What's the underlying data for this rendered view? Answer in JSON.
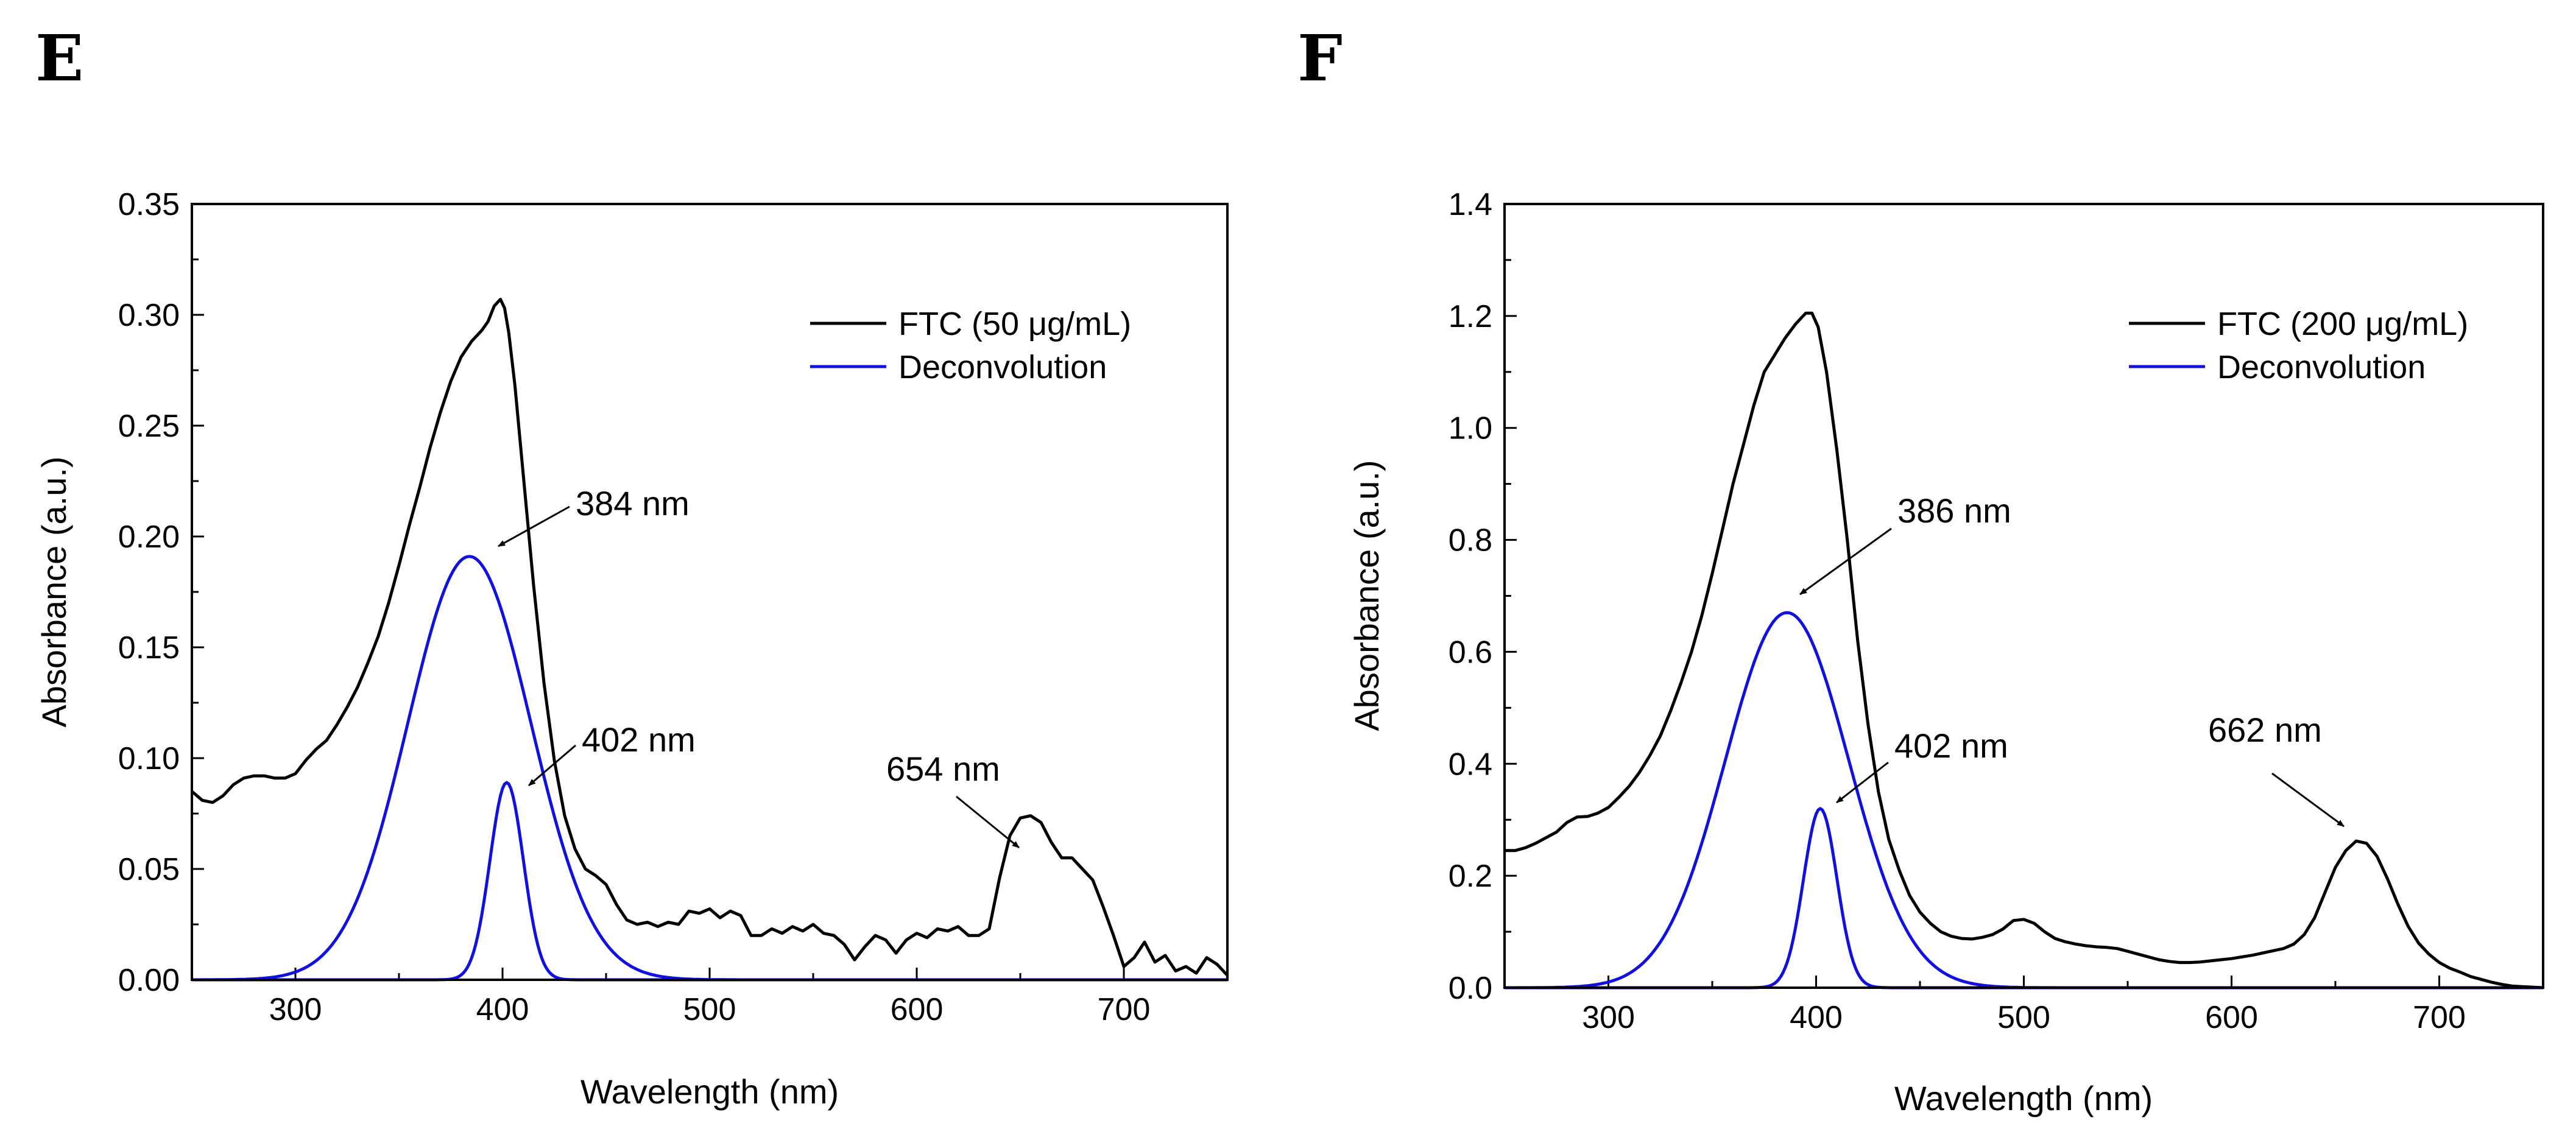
{
  "chart_data": [
    {
      "type": "line",
      "panel_label": "E",
      "xlabel": "Wavelength (nm)",
      "ylabel": "Absorbance (a.u.)",
      "xlim": [
        250,
        750
      ],
      "ylim": [
        0,
        0.35
      ],
      "x_ticks": [
        300,
        400,
        500,
        600,
        700
      ],
      "y_ticks": [
        0.0,
        0.05,
        0.1,
        0.15,
        0.2,
        0.25,
        0.3,
        0.35
      ],
      "y_tick_labels": [
        "0.00",
        "0.05",
        "0.10",
        "0.15",
        "0.20",
        "0.25",
        "0.30",
        "0.35"
      ],
      "legend": [
        "FTC (50 μg/mL)",
        "Deconvolution"
      ],
      "legend_position": "top-right",
      "series": [
        {
          "name": "FTC (50 μg/mL)",
          "color": "#000000",
          "x": [
            250,
            255,
            260,
            265,
            270,
            275,
            280,
            285,
            290,
            295,
            300,
            305,
            310,
            315,
            320,
            325,
            330,
            335,
            340,
            345,
            350,
            355,
            360,
            365,
            370,
            375,
            380,
            385,
            390,
            393,
            396,
            399,
            401,
            403,
            406,
            410,
            415,
            420,
            425,
            430,
            435,
            440,
            445,
            450,
            455,
            460,
            465,
            470,
            475,
            480,
            485,
            490,
            495,
            500,
            505,
            510,
            515,
            520,
            525,
            530,
            535,
            540,
            545,
            550,
            555,
            560,
            565,
            570,
            575,
            580,
            585,
            590,
            595,
            600,
            605,
            610,
            615,
            620,
            625,
            630,
            635,
            640,
            645,
            650,
            655,
            660,
            665,
            670,
            675,
            680,
            685,
            690,
            695,
            700,
            705,
            710,
            715,
            720,
            725,
            730,
            735,
            740,
            745,
            750
          ],
          "values": [
            0.085,
            0.081,
            0.08,
            0.083,
            0.088,
            0.091,
            0.092,
            0.092,
            0.091,
            0.091,
            0.093,
            0.099,
            0.104,
            0.108,
            0.115,
            0.123,
            0.132,
            0.143,
            0.155,
            0.17,
            0.187,
            0.205,
            0.222,
            0.24,
            0.256,
            0.27,
            0.281,
            0.288,
            0.293,
            0.297,
            0.304,
            0.307,
            0.303,
            0.292,
            0.268,
            0.228,
            0.178,
            0.134,
            0.099,
            0.074,
            0.059,
            0.05,
            0.047,
            0.043,
            0.034,
            0.027,
            0.025,
            0.026,
            0.024,
            0.026,
            0.025,
            0.031,
            0.03,
            0.032,
            0.028,
            0.031,
            0.029,
            0.02,
            0.02,
            0.023,
            0.021,
            0.024,
            0.022,
            0.025,
            0.021,
            0.02,
            0.016,
            0.009,
            0.015,
            0.02,
            0.018,
            0.012,
            0.018,
            0.021,
            0.019,
            0.023,
            0.022,
            0.024,
            0.02,
            0.02,
            0.023,
            0.046,
            0.065,
            0.073,
            0.074,
            0.071,
            0.062,
            0.055,
            0.055,
            0.05,
            0.045,
            0.033,
            0.02,
            0.006,
            0.01,
            0.017,
            0.008,
            0.011,
            0.004,
            0.006,
            0.003,
            0.01,
            0.007,
            0.002
          ]
        },
        {
          "name": "Deconvolution",
          "color": "#1010e0",
          "components": [
            {
              "center": 384,
              "amplitude": 0.191,
              "fwhm": 70
            },
            {
              "center": 402,
              "amplitude": 0.089,
              "fwhm": 19
            }
          ]
        }
      ],
      "annotations": [
        {
          "text": "384 nm",
          "target_x": 384,
          "target_y": 0.191
        },
        {
          "text": "402 nm",
          "target_x": 402,
          "target_y": 0.089
        },
        {
          "text": "654 nm",
          "target_x": 654,
          "target_y": 0.074
        }
      ]
    },
    {
      "type": "line",
      "panel_label": "F",
      "xlabel": "Wavelength (nm)",
      "ylabel": "Absorbance (a.u.)",
      "xlim": [
        250,
        750
      ],
      "ylim": [
        0,
        1.4
      ],
      "x_ticks": [
        300,
        400,
        500,
        600,
        700
      ],
      "y_ticks": [
        0.0,
        0.2,
        0.4,
        0.6,
        0.8,
        1.0,
        1.2,
        1.4
      ],
      "y_tick_labels": [
        "0.0",
        "0.2",
        "0.4",
        "0.6",
        "0.8",
        "1.0",
        "1.2",
        "1.4"
      ],
      "legend": [
        "FTC (200 μg/mL)",
        "Deconvolution"
      ],
      "legend_position": "top-right",
      "series": [
        {
          "name": "FTC (200 μg/mL)",
          "color": "#000000",
          "x": [
            250,
            255,
            260,
            265,
            270,
            275,
            280,
            285,
            290,
            295,
            300,
            305,
            310,
            315,
            320,
            325,
            330,
            335,
            340,
            345,
            350,
            355,
            360,
            365,
            370,
            375,
            380,
            385,
            390,
            395,
            398,
            401,
            405,
            410,
            415,
            420,
            425,
            430,
            435,
            440,
            445,
            450,
            455,
            460,
            465,
            470,
            475,
            480,
            485,
            490,
            495,
            500,
            505,
            510,
            515,
            520,
            525,
            530,
            535,
            540,
            545,
            550,
            555,
            560,
            565,
            570,
            575,
            580,
            585,
            590,
            595,
            600,
            605,
            610,
            615,
            620,
            625,
            630,
            635,
            640,
            645,
            650,
            655,
            660,
            665,
            670,
            675,
            680,
            685,
            690,
            695,
            700,
            705,
            710,
            715,
            720,
            725,
            730,
            735,
            740,
            745,
            750
          ],
          "values": [
            0.245,
            0.245,
            0.25,
            0.258,
            0.268,
            0.278,
            0.295,
            0.305,
            0.306,
            0.312,
            0.322,
            0.34,
            0.36,
            0.385,
            0.415,
            0.45,
            0.495,
            0.545,
            0.6,
            0.665,
            0.74,
            0.82,
            0.9,
            0.97,
            1.04,
            1.1,
            1.13,
            1.16,
            1.185,
            1.205,
            1.205,
            1.18,
            1.1,
            0.96,
            0.8,
            0.62,
            0.47,
            0.35,
            0.265,
            0.21,
            0.165,
            0.135,
            0.115,
            0.1,
            0.092,
            0.088,
            0.087,
            0.09,
            0.095,
            0.105,
            0.12,
            0.122,
            0.115,
            0.1,
            0.088,
            0.082,
            0.078,
            0.075,
            0.073,
            0.072,
            0.07,
            0.065,
            0.06,
            0.055,
            0.05,
            0.047,
            0.045,
            0.045,
            0.046,
            0.048,
            0.05,
            0.052,
            0.055,
            0.058,
            0.062,
            0.066,
            0.07,
            0.078,
            0.095,
            0.125,
            0.17,
            0.215,
            0.245,
            0.262,
            0.258,
            0.235,
            0.195,
            0.15,
            0.11,
            0.08,
            0.06,
            0.045,
            0.035,
            0.028,
            0.02,
            0.015,
            0.01,
            0.006,
            0.003,
            0.002,
            0.001,
            0.0
          ]
        },
        {
          "name": "Deconvolution",
          "color": "#1010e0",
          "components": [
            {
              "center": 386,
              "amplitude": 0.67,
              "fwhm": 70
            },
            {
              "center": 402,
              "amplitude": 0.32,
              "fwhm": 19
            }
          ]
        }
      ],
      "annotations": [
        {
          "text": "386 nm",
          "target_x": 386,
          "target_y": 0.67
        },
        {
          "text": "402 nm",
          "target_x": 402,
          "target_y": 0.32
        },
        {
          "text": "662 nm",
          "target_x": 662,
          "target_y": 0.262
        }
      ]
    }
  ]
}
